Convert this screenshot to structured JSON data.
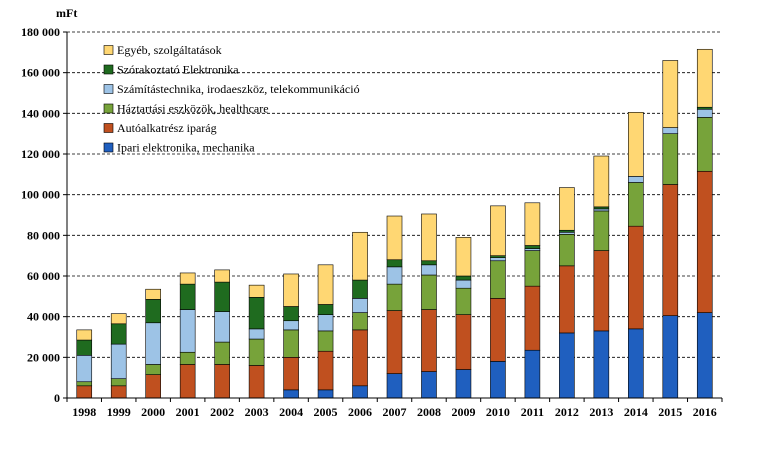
{
  "chart_data": {
    "type": "bar",
    "stacked": true,
    "unit_label": "mFt",
    "categories": [
      "1998",
      "1999",
      "2000",
      "2001",
      "2002",
      "2003",
      "2004",
      "2005",
      "2006",
      "2007",
      "2008",
      "2009",
      "2010",
      "2011",
      "2012",
      "2013",
      "2014",
      "2015",
      "2016"
    ],
    "ylim": [
      0,
      180000
    ],
    "yticks": [
      0,
      20000,
      40000,
      60000,
      80000,
      100000,
      120000,
      140000,
      160000,
      180000
    ],
    "ytick_labels": [
      "0",
      "20 000",
      "40 000",
      "60 000",
      "80 000",
      "100 000",
      "120 000",
      "140 000",
      "160 000",
      "180 000"
    ],
    "grid": "horizontal dashed",
    "legend_position": "top-left",
    "series": [
      {
        "name": "Ipari elektronika, mechanika",
        "color": "#1f5fbf",
        "values": [
          0,
          0,
          0,
          0,
          0,
          0,
          4000,
          4000,
          6000,
          12000,
          13000,
          14000,
          18000,
          23500,
          32000,
          33000,
          34000,
          40500,
          42000
        ]
      },
      {
        "name": "Autóalkatrész iparág",
        "color": "#c0501f",
        "values": [
          6000,
          6000,
          11500,
          16500,
          16500,
          16000,
          16000,
          19000,
          27500,
          31000,
          30500,
          27000,
          31000,
          31500,
          33000,
          39500,
          50500,
          64500,
          69500
        ]
      },
      {
        "name": "Háztartási eszközök, healthcare",
        "color": "#77a33a",
        "values": [
          2000,
          3500,
          5000,
          6000,
          11000,
          13000,
          13500,
          10000,
          8500,
          13000,
          17000,
          13000,
          18500,
          17500,
          15500,
          19500,
          21500,
          25000,
          26500
        ]
      },
      {
        "name": "Számítástechnika, irodaeszköz, telekommunikáció",
        "color": "#9dc3e6",
        "values": [
          13000,
          17000,
          20500,
          21000,
          15000,
          5000,
          4500,
          8000,
          7000,
          8500,
          5000,
          4000,
          1500,
          1000,
          1000,
          1000,
          3000,
          3000,
          4000
        ]
      },
      {
        "name": "Szórakoztató Elektronika",
        "color": "#1f6b1f",
        "values": [
          7500,
          10000,
          11500,
          12500,
          14500,
          15500,
          7000,
          5000,
          9000,
          3500,
          2000,
          2000,
          1000,
          1500,
          1000,
          1000,
          0,
          0,
          1000
        ]
      },
      {
        "name": "Egyéb, szolgáltatások",
        "color": "#ffd773",
        "values": [
          5000,
          5000,
          5000,
          5500,
          6000,
          6000,
          16000,
          19500,
          23500,
          21500,
          23000,
          19000,
          24500,
          21000,
          21000,
          25000,
          31500,
          33000,
          28500
        ]
      }
    ]
  }
}
